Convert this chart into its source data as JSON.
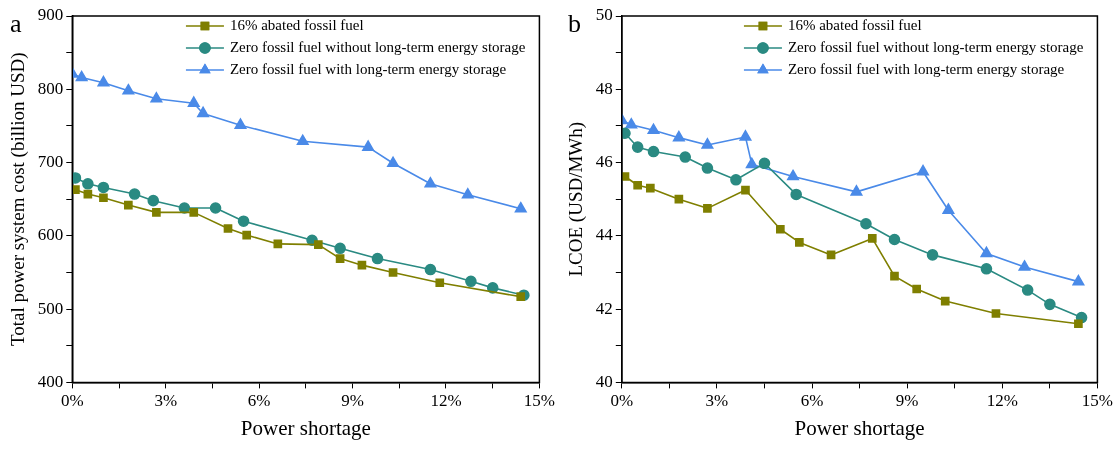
{
  "chart_data": [
    {
      "type": "line",
      "xlabel": "Power shortage",
      "ylabel": "Total power system cost (billion USD)",
      "annotations": [
        "a"
      ],
      "legend": "top right",
      "line_style": "solid",
      "grid": false,
      "xlim": [
        0,
        15
      ],
      "xticks": [
        {
          "value": 0,
          "label": "0%"
        },
        {
          "value": 1.5,
          "label": null
        },
        {
          "value": 3,
          "label": "3%"
        },
        {
          "value": 4.5,
          "label": null
        },
        {
          "value": 6,
          "label": "6%"
        },
        {
          "value": 7.5,
          "label": null
        },
        {
          "value": 9,
          "label": "9%"
        },
        {
          "value": 10.5,
          "label": null
        },
        {
          "value": 12,
          "label": "12%"
        },
        {
          "value": 13.5,
          "label": null
        },
        {
          "value": 15,
          "label": "15%"
        }
      ],
      "ylim": [
        400,
        900
      ],
      "yticks": [
        400,
        {
          "value": 450,
          "label": null
        },
        500,
        {
          "value": 550,
          "label": null
        },
        600,
        {
          "value": 650,
          "label": null
        },
        700,
        {
          "value": 750,
          "label": null
        },
        800,
        {
          "value": 850,
          "label": null
        },
        900
      ],
      "series": [
        {
          "name": "16% abated fossil fuel",
          "color": "#7f7f00",
          "marker": "square",
          "x": [
            0.1,
            0.5,
            1.0,
            1.8,
            2.7,
            3.9,
            5.0,
            5.6,
            6.6,
            7.9,
            8.6,
            9.3,
            10.3,
            11.8,
            14.4
          ],
          "values": [
            663,
            657,
            652,
            642,
            632,
            632,
            610,
            601,
            589,
            588,
            569,
            560,
            550,
            536,
            517
          ]
        },
        {
          "name": "Zero fossil fuel without long-term energy storage",
          "color": "#2a8a82",
          "marker": "circle",
          "x": [
            0.1,
            0.5,
            1.0,
            2.0,
            2.6,
            3.6,
            4.6,
            5.5,
            7.7,
            8.6,
            9.8,
            11.5,
            12.8,
            13.5,
            14.5
          ],
          "values": [
            679,
            671,
            666,
            657,
            648,
            638,
            638,
            620,
            594,
            583,
            569,
            554,
            538,
            529,
            519
          ]
        },
        {
          "name": "Zero fossil fuel with long-term energy storage",
          "color": "#4a8ae8",
          "marker": "triangle",
          "x": [
            0.0,
            0.3,
            1.0,
            1.8,
            2.7,
            3.9,
            4.2,
            5.4,
            7.4,
            9.5,
            10.3,
            11.5,
            12.7,
            14.4
          ],
          "values": [
            821,
            816,
            809,
            798,
            787,
            781,
            767,
            751,
            729,
            721,
            699,
            671,
            656,
            637
          ]
        }
      ]
    },
    {
      "type": "line",
      "xlabel": "Power shortage",
      "ylabel": "LCOE (USD/MWh)",
      "annotations": [
        "b"
      ],
      "legend": "top right",
      "line_style": "solid",
      "grid": false,
      "xlim": [
        0,
        15
      ],
      "xticks": [
        {
          "value": 0,
          "label": "0%"
        },
        {
          "value": 1.5,
          "label": null
        },
        {
          "value": 3,
          "label": "3%"
        },
        {
          "value": 4.5,
          "label": null
        },
        {
          "value": 6,
          "label": "6%"
        },
        {
          "value": 7.5,
          "label": null
        },
        {
          "value": 9,
          "label": "9%"
        },
        {
          "value": 10.5,
          "label": null
        },
        {
          "value": 12,
          "label": "12%"
        },
        {
          "value": 13.5,
          "label": null
        },
        {
          "value": 15,
          "label": "15%"
        }
      ],
      "ylim": [
        40,
        50
      ],
      "yticks": [
        40,
        {
          "value": 41,
          "label": null
        },
        42,
        {
          "value": 43,
          "label": null
        },
        44,
        {
          "value": 45,
          "label": null
        },
        46,
        {
          "value": 47,
          "label": null
        },
        48,
        {
          "value": 49,
          "label": null
        },
        50
      ],
      "series": [
        {
          "name": "16% abated fossil fuel",
          "color": "#7f7f00",
          "marker": "square",
          "x": [
            0.1,
            0.5,
            0.9,
            1.8,
            2.7,
            3.9,
            5.0,
            5.6,
            6.6,
            7.9,
            8.6,
            9.3,
            10.2,
            11.8,
            14.4
          ],
          "values": [
            45.62,
            45.38,
            45.3,
            45.0,
            44.75,
            45.25,
            44.18,
            43.82,
            43.48,
            43.93,
            42.9,
            42.55,
            42.22,
            41.88,
            41.6
          ]
        },
        {
          "name": "Zero fossil fuel without long-term energy storage",
          "color": "#2a8a82",
          "marker": "circle",
          "x": [
            0.1,
            0.5,
            1.0,
            2.0,
            2.7,
            3.6,
            4.5,
            5.5,
            7.7,
            8.6,
            9.8,
            11.5,
            12.8,
            13.5,
            14.5
          ],
          "values": [
            46.8,
            46.42,
            46.3,
            46.15,
            45.85,
            45.53,
            45.98,
            45.13,
            44.33,
            43.9,
            43.48,
            43.1,
            42.52,
            42.13,
            41.77
          ]
        },
        {
          "name": "Zero fossil fuel with long-term energy storage",
          "color": "#4a8ae8",
          "marker": "triangle",
          "x": [
            0.0,
            0.3,
            1.0,
            1.8,
            2.7,
            3.9,
            4.1,
            5.4,
            7.4,
            9.5,
            10.3,
            11.5,
            12.7,
            14.4
          ],
          "values": [
            47.15,
            47.03,
            46.88,
            46.68,
            46.48,
            46.7,
            45.95,
            45.62,
            45.2,
            45.75,
            44.7,
            43.52,
            43.15,
            42.75
          ]
        }
      ]
    }
  ]
}
